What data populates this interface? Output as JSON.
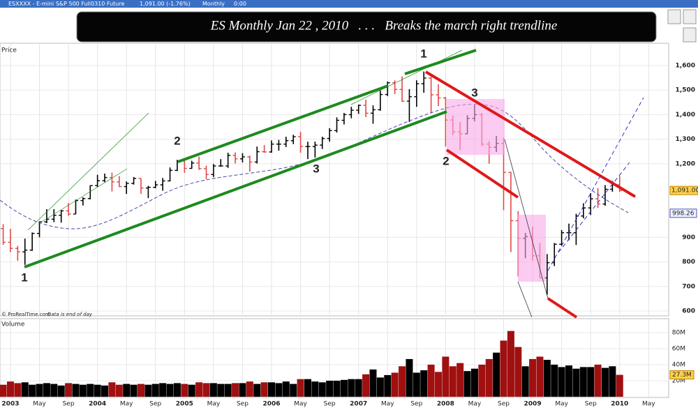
{
  "window_title": "ESXXXX - E-mini S&P 500 Full0310 Future",
  "window_quote": "1,091.00 (-1.76%)",
  "window_period": "Monthly",
  "window_time": "0:00",
  "banner": "ES Monthly Jan 22 , 2010   . . .   Breaks the march right trendline",
  "chart_data": [
    {
      "type": "ohlc",
      "panel_label": "Price",
      "source": "© ProRealTime.com",
      "source_note": "Data is end of day",
      "up_color": "#000000",
      "down_color": "#e04848",
      "xlim": [
        -0.44,
        91.76
      ],
      "ylim": [
        583,
        1691
      ],
      "yticks": [
        {
          "value": 1600,
          "label": "1,600"
        },
        {
          "value": 1500,
          "label": "1,500"
        },
        {
          "value": 1400,
          "label": "1,400"
        },
        {
          "value": 1300,
          "label": "1,300"
        },
        {
          "value": 1200,
          "label": "1,200"
        },
        900,
        800,
        700,
        600
      ],
      "last": {
        "value": 1091,
        "label": "1,091.00"
      },
      "ma_value": 998.26,
      "open": [
        936,
        880,
        855,
        841,
        848,
        916,
        963,
        974,
        990,
        1008,
        995,
        1050,
        1058,
        1111,
        1131,
        1144,
        1126,
        1107,
        1120,
        1140,
        1101,
        1104,
        1114,
        1130,
        1173,
        1211,
        1181,
        1203,
        1180,
        1156,
        1191,
        1191,
        1234,
        1220,
        1228,
        1207,
        1249,
        1248,
        1280,
        1280,
        1294,
        1310,
        1270,
        1270,
        1276,
        1303,
        1335,
        1377,
        1400,
        1418,
        1438,
        1406,
        1420,
        1482,
        1530,
        1503,
        1455,
        1473,
        1526,
        1549,
        1481,
        1468,
        1378,
        1330,
        1322,
        1385,
        1400,
        1280,
        1267,
        1283,
        1165,
        968,
        896,
        903,
        825,
        735,
        797,
        872,
        919,
        919,
        987,
        1020,
        1057,
        1036,
        1096,
        1114
      ],
      "high": [
        954,
        935,
        865,
        895,
        920,
        965,
        1015,
        1015,
        1011,
        1040,
        1054,
        1063,
        1112,
        1155,
        1160,
        1164,
        1150,
        1128,
        1146,
        1140,
        1110,
        1130,
        1142,
        1185,
        1216,
        1217,
        1212,
        1229,
        1192,
        1199,
        1219,
        1245,
        1246,
        1243,
        1233,
        1270,
        1276,
        1295,
        1297,
        1310,
        1318,
        1330,
        1290,
        1290,
        1310,
        1345,
        1389,
        1407,
        1432,
        1441,
        1461,
        1438,
        1498,
        1535,
        1540,
        1556,
        1504,
        1540,
        1576,
        1554,
        1524,
        1472,
        1396,
        1370,
        1398,
        1440,
        1406,
        1292,
        1313,
        1306,
        1167,
        1007,
        918,
        944,
        877,
        832,
        877,
        930,
        956,
        996,
        1039,
        1080,
        1101,
        1113,
        1130,
        1150
      ],
      "low": [
        870,
        840,
        805,
        788,
        845,
        900,
        958,
        962,
        960,
        988,
        995,
        1030,
        1055,
        1105,
        1125,
        1087,
        1105,
        1077,
        1115,
        1077,
        1060,
        1100,
        1090,
        1128,
        1170,
        1163,
        1180,
        1175,
        1137,
        1146,
        1188,
        1183,
        1201,
        1205,
        1168,
        1201,
        1245,
        1245,
        1253,
        1268,
        1280,
        1245,
        1219,
        1225,
        1260,
        1290,
        1327,
        1360,
        1385,
        1403,
        1390,
        1363,
        1416,
        1476,
        1484,
        1452,
        1370,
        1432,
        1489,
        1406,
        1435,
        1270,
        1317,
        1256,
        1320,
        1373,
        1272,
        1200,
        1248,
        1011,
        840,
        741,
        815,
        805,
        735,
        666,
        783,
        866,
        888,
        869,
        978,
        991,
        1020,
        1029,
        1086,
        1085
      ],
      "close": [
        880,
        855,
        841,
        848,
        916,
        963,
        974,
        990,
        1008,
        995,
        1050,
        1058,
        1111,
        1131,
        1144,
        1126,
        1107,
        1120,
        1140,
        1101,
        1104,
        1114,
        1130,
        1173,
        1211,
        1181,
        1203,
        1180,
        1156,
        1191,
        1191,
        1234,
        1220,
        1228,
        1207,
        1249,
        1248,
        1280,
        1280,
        1294,
        1310,
        1270,
        1270,
        1276,
        1303,
        1335,
        1377,
        1400,
        1418,
        1438,
        1406,
        1420,
        1482,
        1530,
        1503,
        1455,
        1473,
        1526,
        1549,
        1481,
        1468,
        1378,
        1330,
        1322,
        1385,
        1400,
        1280,
        1267,
        1283,
        1165,
        968,
        896,
        903,
        825,
        735,
        797,
        872,
        919,
        919,
        987,
        1020,
        1057,
        1036,
        1096,
        1114,
        1091
      ],
      "annotations": [
        {
          "text": "1",
          "color": "#1e8a1e"
        },
        {
          "text": "2",
          "color": "#1e8a1e"
        },
        {
          "text": "3",
          "color": "#1e8a1e"
        },
        {
          "text": "1",
          "color": "#e01818"
        },
        {
          "text": "2",
          "color": "#e01818"
        },
        {
          "text": "3",
          "color": "#e01818"
        }
      ]
    },
    {
      "type": "bar",
      "panel_label": "Volume",
      "up_color": "#000000",
      "down_color": "#a01010",
      "xlim": [
        -0.44,
        91.76
      ],
      "ylim": [
        0,
        93
      ],
      "yticks": [
        {
          "value": 80,
          "label": "80M"
        },
        {
          "value": 60,
          "label": "60M"
        },
        {
          "value": 40,
          "label": "40M"
        },
        {
          "value": 20,
          "label": "20M"
        }
      ],
      "last": {
        "value": 27.3,
        "label": "27.3M"
      },
      "values": [
        15,
        19,
        17,
        18,
        15,
        16,
        17,
        16,
        14,
        17,
        16,
        15,
        16,
        15,
        14,
        18,
        15,
        16,
        15,
        16,
        15,
        16,
        17,
        16,
        17,
        16,
        15,
        18,
        17,
        17,
        16,
        16,
        17,
        17,
        19,
        16,
        18,
        18,
        17,
        19,
        16,
        22,
        22,
        19,
        18,
        20,
        20,
        21,
        22,
        22,
        28,
        34,
        24,
        27,
        30,
        38,
        47,
        30,
        33,
        40,
        31,
        50,
        38,
        42,
        32,
        35,
        40,
        47,
        55,
        70,
        82,
        62,
        38,
        47,
        50,
        46,
        40,
        37,
        39,
        35,
        37,
        37,
        40,
        36,
        38,
        27.3
      ],
      "xticks": [
        {
          "value": 1,
          "label": "2003"
        },
        {
          "value": 5,
          "label": "May"
        },
        {
          "value": 9,
          "label": "Sep"
        },
        {
          "value": 13,
          "label": "2004"
        },
        {
          "value": 17,
          "label": "May"
        },
        {
          "value": 21,
          "label": "Sep"
        },
        {
          "value": 25,
          "label": "2005"
        },
        {
          "value": 29,
          "label": "May"
        },
        {
          "value": 33,
          "label": "Sep"
        },
        {
          "value": 37,
          "label": "2006"
        },
        {
          "value": 41,
          "label": "May"
        },
        {
          "value": 45,
          "label": "Sep"
        },
        {
          "value": 49,
          "label": "2007"
        },
        {
          "value": 53,
          "label": "May"
        },
        {
          "value": 57,
          "label": "Sep"
        },
        {
          "value": 61,
          "label": "2008"
        },
        {
          "value": 65,
          "label": "May"
        },
        {
          "value": 69,
          "label": "Sep"
        },
        {
          "value": 73,
          "label": "2009"
        },
        {
          "value": 77,
          "label": "May"
        },
        {
          "value": 81,
          "label": "Sep"
        },
        {
          "value": 85,
          "label": "2010"
        },
        {
          "value": 89,
          "label": "May"
        }
      ]
    }
  ]
}
